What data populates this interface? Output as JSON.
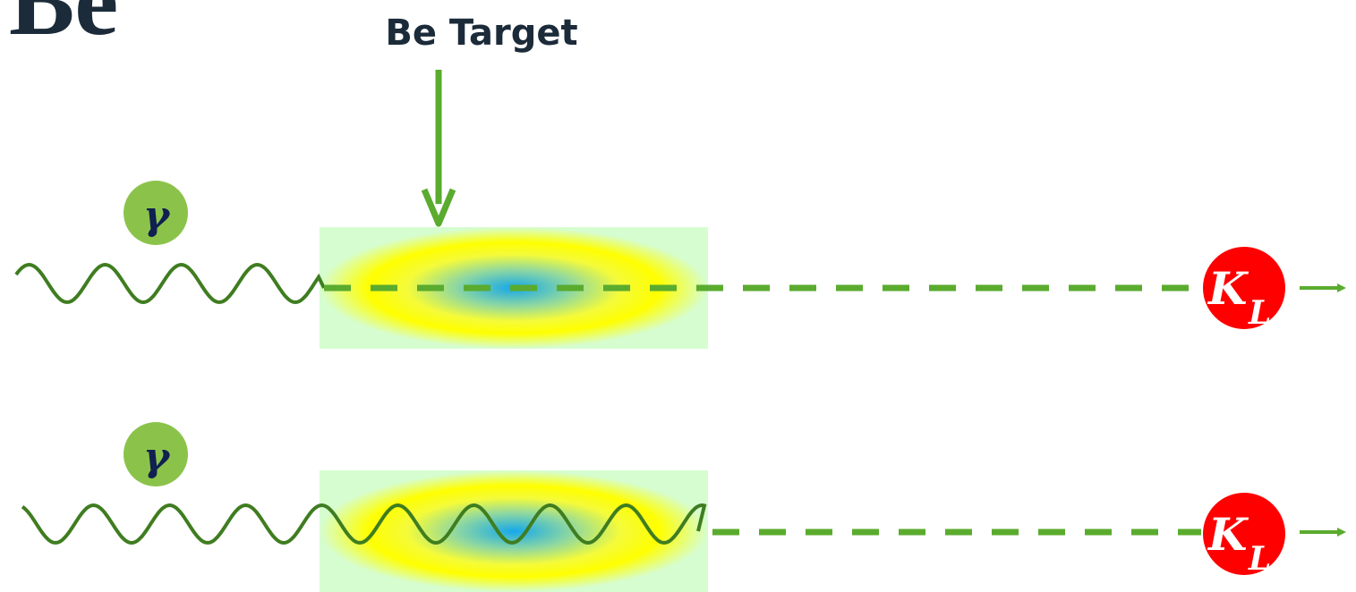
{
  "title": "Be",
  "target_label": "Be Target",
  "rows": [
    {
      "incoming": "γ",
      "outgoing": "K",
      "outgoing_sub": "L"
    },
    {
      "incoming": "γ",
      "outgoing": "K",
      "outgoing_sub": "L"
    }
  ]
}
